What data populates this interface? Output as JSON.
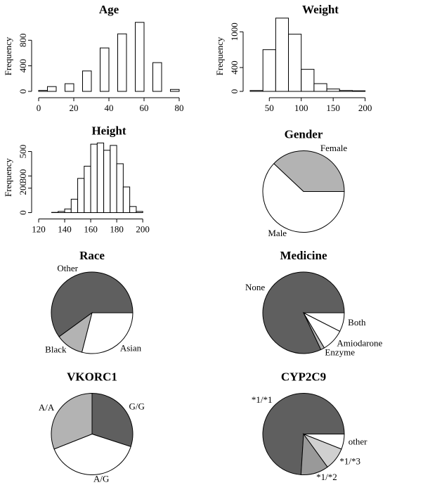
{
  "chart_data": [
    {
      "type": "histogram",
      "title": "Age",
      "ylabel": "Frequency",
      "bins": [
        0,
        5,
        10,
        15,
        20,
        25,
        30,
        35,
        40,
        45,
        50,
        55,
        60,
        65,
        70,
        75,
        80
      ],
      "values": [
        15,
        75,
        0,
        120,
        0,
        320,
        0,
        680,
        0,
        900,
        0,
        1080,
        0,
        450,
        0,
        30
      ],
      "xlim": [
        0,
        80
      ],
      "xticks": [
        0,
        20,
        40,
        60,
        80
      ],
      "ylim": [
        0,
        1100
      ],
      "yticks": [
        0,
        400,
        800
      ],
      "color": "#ffffff"
    },
    {
      "type": "histogram",
      "title": "Weight",
      "ylabel": "Frequency",
      "bins": [
        20,
        40,
        60,
        80,
        100,
        120,
        140,
        160,
        180,
        200
      ],
      "values": [
        15,
        700,
        1230,
        960,
        370,
        130,
        40,
        15,
        10
      ],
      "xlim": [
        20,
        240
      ],
      "xticks": [
        50,
        100,
        150,
        200
      ],
      "ylim": [
        0,
        1180
      ],
      "yticks": [
        0,
        400,
        1000
      ],
      "color": "#ffffff"
    },
    {
      "type": "histogram",
      "title": "Height",
      "ylabel": "Frequency",
      "bins": [
        120,
        125,
        130,
        135,
        140,
        145,
        150,
        155,
        160,
        165,
        170,
        175,
        180,
        185,
        190,
        195,
        200
      ],
      "values": [
        0,
        0,
        2,
        10,
        30,
        110,
        280,
        380,
        560,
        570,
        510,
        550,
        400,
        210,
        50,
        10
      ],
      "xlim": [
        120,
        228
      ],
      "xticks": [
        120,
        140,
        160,
        180,
        200
      ],
      "ylim": [
        0,
        575
      ],
      "yticks": [
        0,
        200,
        300,
        500
      ],
      "color": "#ffffff"
    },
    {
      "type": "pie",
      "title": "Gender",
      "categories": [
        "Female",
        "Male"
      ],
      "values": [
        38,
        62
      ],
      "colors": [
        "#b3b3b3",
        "#ffffff"
      ]
    },
    {
      "type": "pie",
      "title": "Race",
      "categories": [
        "Other",
        "Black",
        "Asian"
      ],
      "values": [
        60,
        11,
        29
      ],
      "colors": [
        "#5f5f5f",
        "#b3b3b3",
        "#ffffff"
      ]
    },
    {
      "type": "pie",
      "title": "Medicine",
      "categories": [
        "None",
        "Enzyme",
        "Amiodarone",
        "Both"
      ],
      "values": [
        82,
        1.5,
        9,
        7.5
      ],
      "colors": [
        "#5f5f5f",
        "#b3b3b3",
        "#ffffff",
        "#ffffff"
      ]
    },
    {
      "type": "pie",
      "title": "VKORC1",
      "categories": [
        "G/G",
        "A/G",
        "A/A"
      ],
      "values": [
        30,
        39,
        31
      ],
      "colors": [
        "#5f5f5f",
        "#ffffff",
        "#b3b3b3"
      ],
      "clockwise": true
    },
    {
      "type": "pie",
      "title": "CYP2C9",
      "categories": [
        "*1/*1",
        "*1/*2",
        "*1/*3",
        "other"
      ],
      "values": [
        74,
        11,
        9,
        6
      ],
      "colors": [
        "#5f5f5f",
        "#999999",
        "#d0d0d0",
        "#ffffff"
      ]
    }
  ]
}
